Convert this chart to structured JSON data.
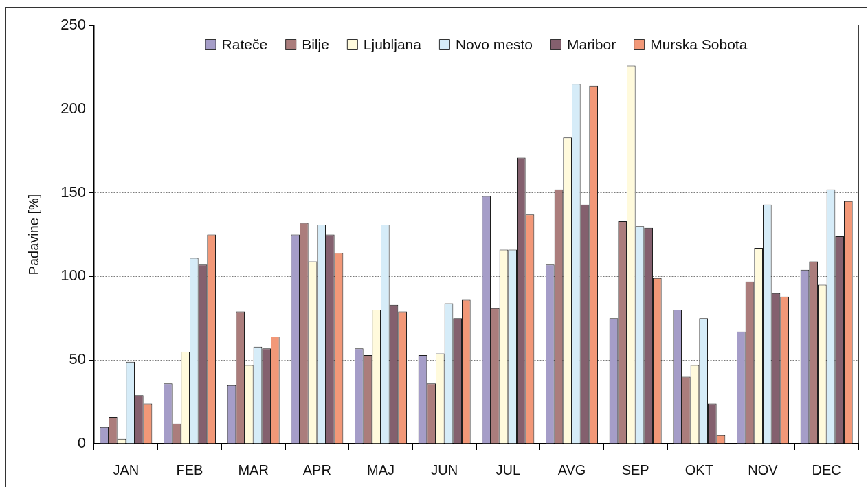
{
  "chart_data": {
    "type": "bar",
    "ylabel": "Padavine [%]",
    "categories": [
      "JAN",
      "FEB",
      "MAR",
      "APR",
      "MAJ",
      "JUN",
      "JUL",
      "AVG",
      "SEP",
      "OKT",
      "NOV",
      "DEC"
    ],
    "series": [
      {
        "name": "Rateče",
        "color": "#a59dc8",
        "values": [
          10,
          36,
          35,
          125,
          57,
          53,
          148,
          107,
          75,
          80,
          67,
          104
        ]
      },
      {
        "name": "Bilje",
        "color": "#ab7d7c",
        "values": [
          16,
          12,
          79,
          132,
          53,
          36,
          81,
          152,
          133,
          40,
          97,
          109
        ]
      },
      {
        "name": "Ljubljana",
        "color": "#fffadc",
        "values": [
          3,
          55,
          47,
          109,
          80,
          54,
          116,
          183,
          226,
          47,
          117,
          95
        ]
      },
      {
        "name": "Novo mesto",
        "color": "#d6ecf8",
        "values": [
          49,
          111,
          58,
          131,
          131,
          84,
          116,
          215,
          130,
          75,
          143,
          152
        ]
      },
      {
        "name": "Maribor",
        "color": "#84606e",
        "values": [
          29,
          107,
          57,
          125,
          83,
          75,
          171,
          143,
          129,
          24,
          90,
          124
        ]
      },
      {
        "name": "Murska Sobota",
        "color": "#f29878",
        "values": [
          24,
          125,
          64,
          114,
          79,
          86,
          137,
          214,
          99,
          5,
          88,
          145
        ]
      }
    ],
    "ylim": [
      0,
      250
    ],
    "yticks": [
      0,
      50,
      100,
      150,
      200,
      250
    ],
    "grid": "y",
    "legend": "top"
  }
}
